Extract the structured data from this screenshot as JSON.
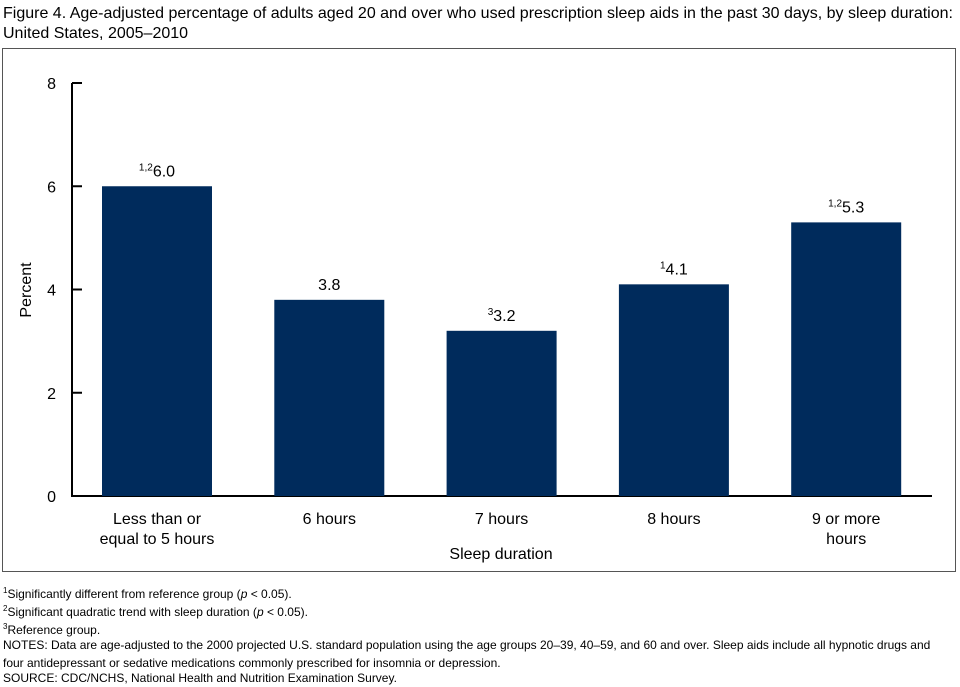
{
  "title": "Figure 4. Age-adjusted percentage of adults aged 20 and over who used prescription sleep aids in the past 30 days, by sleep duration: United States, 2005–2010",
  "chart_data": {
    "type": "bar",
    "categories": [
      [
        "Less than or",
        "equal to 5 hours"
      ],
      [
        "6 hours"
      ],
      [
        "7 hours"
      ],
      [
        "8 hours"
      ],
      [
        "9 or more",
        "hours"
      ]
    ],
    "values": [
      6.0,
      3.8,
      3.2,
      4.1,
      5.3
    ],
    "data_labels": [
      "6.0",
      "3.8",
      "3.2",
      "4.1",
      "5.3"
    ],
    "label_superscripts": [
      "1,2",
      "",
      "3",
      "1",
      "1,2"
    ],
    "xlabel": "Sleep duration",
    "ylabel": "Percent",
    "ylim": [
      0,
      8
    ],
    "yticks": [
      0,
      2,
      4,
      6,
      8
    ],
    "grid": false,
    "bar_color": "#002B5C"
  },
  "footnotes": {
    "n1_sup": "1",
    "n1": "Significantly different from reference group (",
    "n2_sup": "2",
    "n2": "Significant quadratic trend with sleep duration (",
    "p": "p",
    "p_tail": " < 0.05).",
    "n3_sup": "3",
    "n3": "Reference group.",
    "notes": "NOTES: Data are age-adjusted to the 2000 projected U.S. standard population using the age groups 20–39, 40–59, and 60 and over. Sleep aids include all hypnotic drugs and four antidepressant or sedative medications commonly prescribed for insomnia or depression.",
    "source": "SOURCE: CDC/NCHS, National Health and Nutrition Examination Survey."
  }
}
